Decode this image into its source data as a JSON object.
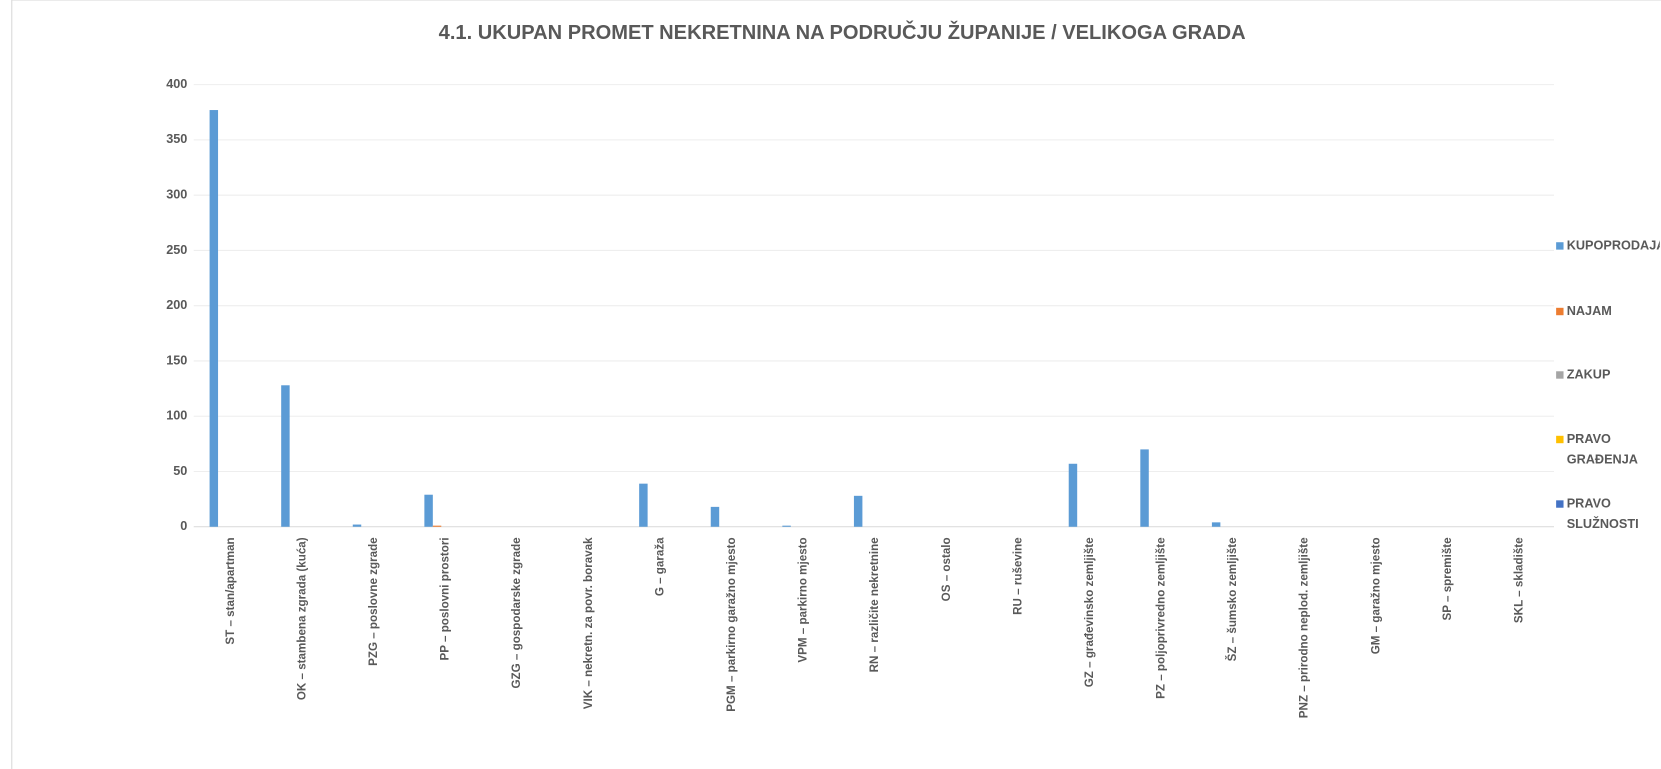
{
  "chart_data": {
    "type": "bar",
    "title": "4.1. UKUPAN PROMET NEKRETNINA NA PODRUČJU ŽUPANIJE /  VELIKOGA GRADA",
    "categories": [
      "ST – stan/apartman",
      "OK – stambena zgrada (kuća)",
      "PZG – poslovne zgrade",
      "PP – poslovni prostori",
      "GZG – gospodarske zgrade",
      "VIK – nekretn. za povr. boravak",
      "G – garaža",
      "PGM – parkirno garažno mjesto",
      "VPM – parkirno mjesto",
      "RN – različite nekretnine",
      "OS – ostalo",
      "RU – ruševine",
      "GZ – građevinsko zemljište",
      "PZ – poljoprivredno zemljište",
      "ŠZ – šumsko zemljište",
      "PNZ – prirodno neplod. zemljište",
      "GM – garažno mjesto",
      "SP – spremište",
      "SKL – skladište"
    ],
    "series": [
      {
        "name": "KUPOPRODAJA",
        "color": "#5b9bd5",
        "values": [
          377,
          128,
          2,
          29,
          0,
          0,
          39,
          18,
          1,
          28,
          0,
          0,
          57,
          70,
          4,
          0,
          0,
          0,
          0
        ]
      },
      {
        "name": "NAJAM",
        "color": "#ed7d31",
        "values": [
          0,
          0,
          0,
          1,
          0,
          0,
          0,
          0,
          0,
          0,
          0,
          0,
          0,
          0,
          0,
          0,
          0,
          0,
          0
        ]
      },
      {
        "name": "ZAKUP",
        "color": "#a5a5a5",
        "values": [
          0,
          0,
          0,
          0,
          0,
          0,
          0,
          0,
          0,
          0,
          0,
          0,
          0,
          0,
          0,
          0,
          0,
          0,
          0
        ]
      },
      {
        "name": "PRAVO GRAĐENJA",
        "color": "#ffc000",
        "values": [
          0,
          0,
          0,
          0,
          0,
          0,
          0,
          0,
          0,
          0,
          0,
          0,
          0,
          0,
          0,
          0,
          0,
          0,
          0
        ]
      },
      {
        "name": "PRAVO SLUŽNOSTI",
        "color": "#4472c4",
        "values": [
          0,
          0,
          0,
          0,
          0,
          0,
          0,
          0,
          0,
          0,
          0,
          0,
          0,
          0,
          0,
          0,
          0,
          0,
          0
        ]
      }
    ],
    "ylim": [
      0,
      400
    ],
    "yticks": [
      0,
      50,
      100,
      150,
      200,
      250,
      300,
      350,
      400
    ],
    "grid": true,
    "legend": "right"
  }
}
